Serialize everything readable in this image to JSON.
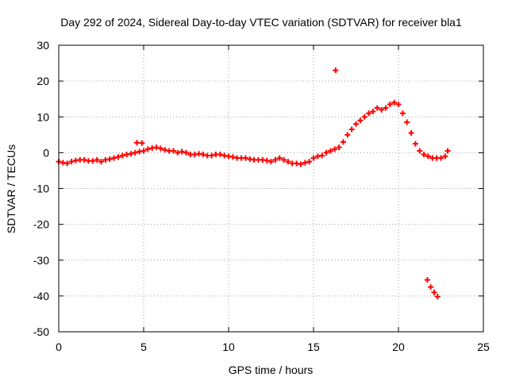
{
  "chart_data": {
    "type": "scatter",
    "title": "Day 292 of 2024, Sidereal Day-to-day VTEC variation (SDTVAR) for receiver bla1",
    "xlabel": "GPS time / hours",
    "ylabel": "SDTVAR / TECUs",
    "xlim": [
      0,
      25
    ],
    "ylim": [
      -50,
      30
    ],
    "xticks": [
      0,
      5,
      10,
      15,
      20,
      25
    ],
    "yticks": [
      -50,
      -40,
      -30,
      -20,
      -10,
      0,
      10,
      20,
      30
    ],
    "xtick_labels": [
      "0",
      "5",
      "10",
      "15",
      "20",
      "25"
    ],
    "ytick_labels": [
      "-50",
      "-40",
      "-30",
      "-20",
      "-10",
      "0",
      "10",
      "20",
      "30"
    ],
    "grid": true,
    "marker": "+",
    "colors": {
      "series": "#ff0000",
      "grid": "#a0a0a0",
      "axis": "#000000"
    },
    "series": [
      {
        "name": "SDTVAR",
        "x": [
          0.0,
          0.25,
          0.5,
          0.75,
          1.0,
          1.25,
          1.5,
          1.75,
          2.0,
          2.25,
          2.5,
          2.75,
          3.0,
          3.25,
          3.5,
          3.75,
          4.0,
          4.25,
          4.5,
          4.75,
          5.0,
          5.25,
          5.5,
          5.75,
          6.0,
          6.25,
          6.5,
          6.75,
          7.0,
          7.25,
          7.5,
          7.75,
          8.0,
          8.25,
          8.5,
          8.75,
          9.0,
          9.25,
          9.5,
          9.75,
          10.0,
          10.25,
          10.5,
          10.75,
          11.0,
          11.25,
          11.5,
          11.75,
          12.0,
          12.25,
          12.5,
          12.75,
          13.0,
          13.25,
          13.5,
          13.75,
          14.0,
          14.25,
          14.5,
          14.75,
          15.0,
          15.25,
          15.5,
          15.75,
          16.0,
          16.25,
          16.5,
          16.75,
          17.0,
          17.25,
          17.5,
          17.75,
          18.0,
          18.25,
          18.5,
          18.75,
          19.0,
          19.25,
          19.5,
          19.75,
          20.0,
          20.25,
          20.5,
          20.75,
          21.0,
          21.25,
          21.5,
          21.75,
          22.0,
          22.25,
          22.5,
          22.75,
          22.9,
          4.6,
          4.9,
          16.3,
          21.7,
          21.9,
          22.1,
          22.3
        ],
        "y": [
          -2.5,
          -2.8,
          -3.0,
          -2.5,
          -2.2,
          -2.0,
          -2.0,
          -2.3,
          -2.3,
          -2.0,
          -2.5,
          -2.0,
          -1.8,
          -1.5,
          -1.2,
          -0.8,
          -0.5,
          -0.3,
          0.0,
          0.3,
          0.5,
          1.0,
          1.3,
          1.5,
          1.2,
          0.8,
          0.5,
          0.5,
          0.0,
          0.3,
          0.0,
          -0.5,
          -0.5,
          -0.3,
          -0.5,
          -0.8,
          -0.8,
          -0.5,
          -0.5,
          -0.8,
          -1.0,
          -1.2,
          -1.5,
          -1.5,
          -1.5,
          -1.8,
          -2.0,
          -2.0,
          -2.0,
          -2.2,
          -2.5,
          -2.0,
          -1.5,
          -2.0,
          -2.5,
          -3.0,
          -3.0,
          -3.2,
          -2.8,
          -2.5,
          -1.5,
          -1.0,
          -0.8,
          0.0,
          0.5,
          1.0,
          1.5,
          3.0,
          5.0,
          6.5,
          8.0,
          9.0,
          10.0,
          11.0,
          11.5,
          12.5,
          12.0,
          12.5,
          13.5,
          14.0,
          13.5,
          11.0,
          8.5,
          5.5,
          2.5,
          0.5,
          -0.5,
          -1.0,
          -1.5,
          -1.5,
          -1.5,
          -1.0,
          0.5,
          2.8,
          2.7,
          23.0,
          -35.5,
          -37.5,
          -39.0,
          -40.2
        ]
      }
    ]
  }
}
